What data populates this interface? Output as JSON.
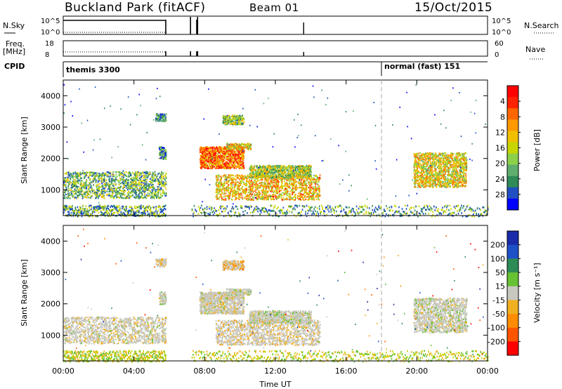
{
  "header": {
    "station": "Buckland Park (fitACF)",
    "beam": "Beam 01",
    "date": "15/Oct/2015"
  },
  "colors": {
    "power": [
      "#0000ff",
      "#1f4fc2",
      "#2e8b57",
      "#5fae6e",
      "#8cd04a",
      "#c8d400",
      "#f0c000",
      "#ff9900",
      "#ff6600",
      "#ff2200",
      "#ff0000"
    ],
    "velocity": [
      "#1a2aa8",
      "#1e50c8",
      "#2e8b57",
      "#66c233",
      "#c8c8c0",
      "#f0b020",
      "#ff8c00",
      "#ff5500",
      "#ff0000"
    ],
    "ground_scatter": "#c8c8c0",
    "noise_floor_power": [
      "#2e8b57",
      "#c8d400",
      "#1f4fc2"
    ],
    "noise_floor_velocity": [
      "#c8d400",
      "#f0b020",
      "#66c233"
    ]
  },
  "top_panels": {
    "nsky_label": "N.Sky",
    "nsky_ticks": [
      "10^5",
      "10^0"
    ],
    "nsearch_label": "N.Search",
    "nsearch_ticks": [
      "10^5",
      "10^0"
    ],
    "freq_label": "Freq.",
    "freq_unit": "[MHz]",
    "freq_ticks": [
      "18",
      "8"
    ],
    "nave_label": "Nave",
    "nave_ticks": [
      "60",
      "0"
    ],
    "cpid_label": "CPID",
    "cpid_segments": [
      {
        "label": "themis 3300",
        "start_h": 0
      },
      {
        "label": "normal (fast) 151",
        "start_h": 18
      }
    ]
  },
  "chart_data": [
    {
      "type": "heatmap",
      "name": "power",
      "xlabel": "Time UT",
      "ylabel": "Slant Range [km]",
      "xlim": [
        0,
        24
      ],
      "ylim": [
        180,
        4500
      ],
      "x_ticks": [
        "00:00",
        "04:00",
        "08:00",
        "12:00",
        "16:00",
        "20:00",
        "00:00"
      ],
      "y_ticks": [
        1000,
        2000,
        3000,
        4000
      ],
      "colorbar": {
        "label": "Power [dB]",
        "range": [
          0,
          30
        ],
        "ticks": [
          "4",
          "8",
          "12",
          "16",
          "20",
          "24",
          "28"
        ]
      },
      "data_gaps_h": [
        [
          5.8,
          7.2
        ],
        [
          7.55,
          7.6
        ]
      ],
      "scatter_regions": [
        {
          "t": [
            0.0,
            5.8
          ],
          "r": [
            750,
            1600
          ],
          "level": 0.35
        },
        {
          "t": [
            5.4,
            5.8
          ],
          "r": [
            2000,
            2400
          ],
          "level": 0.25
        },
        {
          "t": [
            5.2,
            5.8
          ],
          "r": [
            3200,
            3450
          ],
          "level": 0.2
        },
        {
          "t": [
            7.7,
            10.2
          ],
          "r": [
            1700,
            2400
          ],
          "level": 0.75
        },
        {
          "t": [
            9.2,
            10.6
          ],
          "r": [
            2300,
            2500
          ],
          "level": 0.55
        },
        {
          "t": [
            9.0,
            10.2
          ],
          "r": [
            3100,
            3400
          ],
          "level": 0.4
        },
        {
          "t": [
            8.6,
            14.5
          ],
          "r": [
            700,
            1500
          ],
          "level": 0.6
        },
        {
          "t": [
            10.5,
            14.0
          ],
          "r": [
            1400,
            1800
          ],
          "level": 0.45
        },
        {
          "t": [
            19.8,
            22.8
          ],
          "r": [
            1100,
            2200
          ],
          "level": 0.55
        }
      ]
    },
    {
      "type": "heatmap",
      "name": "velocity",
      "xlabel": "Time UT",
      "ylabel": "Slant Range [km]",
      "xlim": [
        0,
        24
      ],
      "ylim": [
        180,
        4500
      ],
      "x_ticks": [
        "00:00",
        "04:00",
        "08:00",
        "12:00",
        "16:00",
        "20:00",
        "00:00"
      ],
      "y_ticks": [
        1000,
        2000,
        3000,
        4000
      ],
      "colorbar": {
        "label": "Velocity [m s⁻¹]",
        "range": [
          -250,
          250
        ],
        "ticks": [
          "200",
          "100",
          "50",
          "15",
          "-15",
          "-50",
          "-100",
          "-200"
        ]
      },
      "data_gaps_h": [
        [
          5.8,
          7.2
        ],
        [
          7.55,
          7.6
        ]
      ],
      "scatter_regions": [
        {
          "t": [
            0.0,
            5.8
          ],
          "r": [
            750,
            1600
          ],
          "v": -20
        },
        {
          "t": [
            5.4,
            5.8
          ],
          "r": [
            2000,
            2400
          ],
          "v": 0
        },
        {
          "t": [
            5.2,
            5.8
          ],
          "r": [
            3200,
            3450
          ],
          "v": -40
        },
        {
          "t": [
            7.7,
            10.2
          ],
          "r": [
            1700,
            2400
          ],
          "v": -20
        },
        {
          "t": [
            9.2,
            10.6
          ],
          "r": [
            2300,
            2500
          ],
          "v": 0
        },
        {
          "t": [
            9.0,
            10.2
          ],
          "r": [
            3100,
            3400
          ],
          "v": -80
        },
        {
          "t": [
            8.6,
            14.5
          ],
          "r": [
            700,
            1500
          ],
          "v": -30
        },
        {
          "t": [
            10.5,
            14.0
          ],
          "r": [
            1400,
            1800
          ],
          "v": 10
        },
        {
          "t": [
            19.8,
            22.8
          ],
          "r": [
            1100,
            2200
          ],
          "v": 0
        }
      ]
    }
  ]
}
